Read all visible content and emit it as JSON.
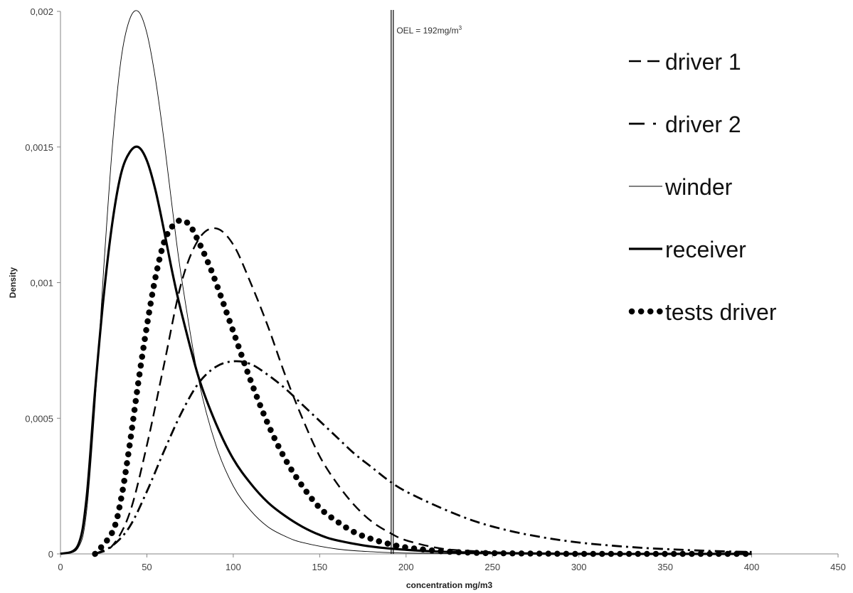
{
  "chart_data": {
    "type": "line",
    "title": "",
    "xlabel": "concentration mg/m3",
    "ylabel": "Density",
    "xlim": [
      0,
      450
    ],
    "ylim": [
      0,
      0.002
    ],
    "x_ticks": [
      0,
      50,
      100,
      150,
      200,
      250,
      300,
      350,
      400,
      450
    ],
    "y_ticks": [
      0,
      0.0005,
      0.001,
      0.0015,
      0.002
    ],
    "y_tick_labels": [
      "0",
      "0,0005",
      "0,001",
      "0,0015",
      "0,002"
    ],
    "grid": false,
    "legend_position": "right",
    "reference_line": {
      "x": 192,
      "label_main": "OEL = 192mg/m",
      "label_sup": "3"
    },
    "series": [
      {
        "name": "driver 1",
        "style": "dashed",
        "color": "#000000",
        "x": [
          20,
          30,
          40,
          50,
          60,
          70,
          80,
          90,
          100,
          110,
          120,
          130,
          140,
          150,
          160,
          170,
          180,
          190,
          200,
          220,
          240,
          260,
          280,
          300,
          340,
          400
        ],
        "y": [
          0,
          3e-05,
          0.00015,
          0.0004,
          0.0007,
          0.001,
          0.00116,
          0.0012,
          0.00114,
          0.001,
          0.00084,
          0.00066,
          0.0005,
          0.00036,
          0.00026,
          0.00018,
          0.00012,
          8e-05,
          5e-05,
          2e-05,
          1e-05,
          4e-06,
          2e-06,
          1e-06,
          0,
          0
        ]
      },
      {
        "name": "driver 2",
        "style": "dash-dot",
        "color": "#000000",
        "x": [
          20,
          30,
          40,
          50,
          60,
          70,
          80,
          90,
          100,
          110,
          120,
          130,
          140,
          150,
          160,
          170,
          180,
          190,
          200,
          220,
          240,
          260,
          280,
          300,
          320,
          340,
          360,
          380,
          400
        ],
        "y": [
          0,
          3e-05,
          0.0001,
          0.00023,
          0.00038,
          0.00052,
          0.00063,
          0.00069,
          0.00071,
          0.0007,
          0.00066,
          0.00061,
          0.00055,
          0.00049,
          0.00043,
          0.00037,
          0.00032,
          0.00027,
          0.00023,
          0.00017,
          0.00012,
          8.5e-05,
          6e-05,
          4.2e-05,
          3e-05,
          2.1e-05,
          1.5e-05,
          1e-05,
          7e-06
        ]
      },
      {
        "name": "winder",
        "style": "thin",
        "color": "#000000",
        "x": [
          0,
          10,
          15,
          20,
          25,
          30,
          35,
          40,
          45,
          50,
          55,
          60,
          65,
          70,
          80,
          90,
          100,
          110,
          120,
          130,
          140,
          160,
          180,
          200,
          250,
          300
        ],
        "y": [
          0,
          2e-05,
          0.00015,
          0.00055,
          0.00105,
          0.0015,
          0.00182,
          0.00197,
          0.002,
          0.00192,
          0.00175,
          0.00152,
          0.00126,
          0.00102,
          0.00064,
          0.0004,
          0.00025,
          0.00016,
          0.0001,
          6.5e-05,
          4.2e-05,
          1.8e-05,
          8e-06,
          3e-06,
          0,
          0
        ]
      },
      {
        "name": "receiver",
        "style": "thick",
        "color": "#000000",
        "x": [
          0,
          10,
          15,
          20,
          25,
          30,
          35,
          40,
          45,
          50,
          55,
          60,
          65,
          70,
          80,
          90,
          100,
          110,
          120,
          130,
          140,
          150,
          160,
          180,
          200,
          220,
          250,
          300,
          350,
          400
        ],
        "y": [
          0,
          3e-05,
          0.0002,
          0.0006,
          0.00095,
          0.00122,
          0.0014,
          0.00148,
          0.0015,
          0.00145,
          0.00134,
          0.00119,
          0.00103,
          0.00089,
          0.00065,
          0.00048,
          0.00035,
          0.00026,
          0.00019,
          0.00014,
          0.0001,
          7e-05,
          5e-05,
          2.7e-05,
          1.5e-05,
          8e-06,
          3e-06,
          0,
          0,
          0
        ]
      },
      {
        "name": "tests driver",
        "style": "dotted",
        "color": "#000000",
        "x": [
          20,
          30,
          35,
          40,
          45,
          50,
          55,
          60,
          65,
          70,
          75,
          80,
          85,
          90,
          100,
          110,
          120,
          130,
          140,
          150,
          160,
          170,
          180,
          190,
          200,
          220,
          240,
          260,
          280,
          300,
          340,
          400
        ],
        "y": [
          0,
          8e-05,
          0.0002,
          0.0004,
          0.00063,
          0.00084,
          0.00102,
          0.00115,
          0.00121,
          0.00123,
          0.00121,
          0.00115,
          0.00108,
          0.001,
          0.00082,
          0.00064,
          0.00048,
          0.00035,
          0.00025,
          0.00017,
          0.00012,
          8e-05,
          5.5e-05,
          3.7e-05,
          2.4e-05,
          1e-05,
          4e-06,
          2e-06,
          1e-06,
          0,
          0,
          0
        ]
      }
    ]
  }
}
